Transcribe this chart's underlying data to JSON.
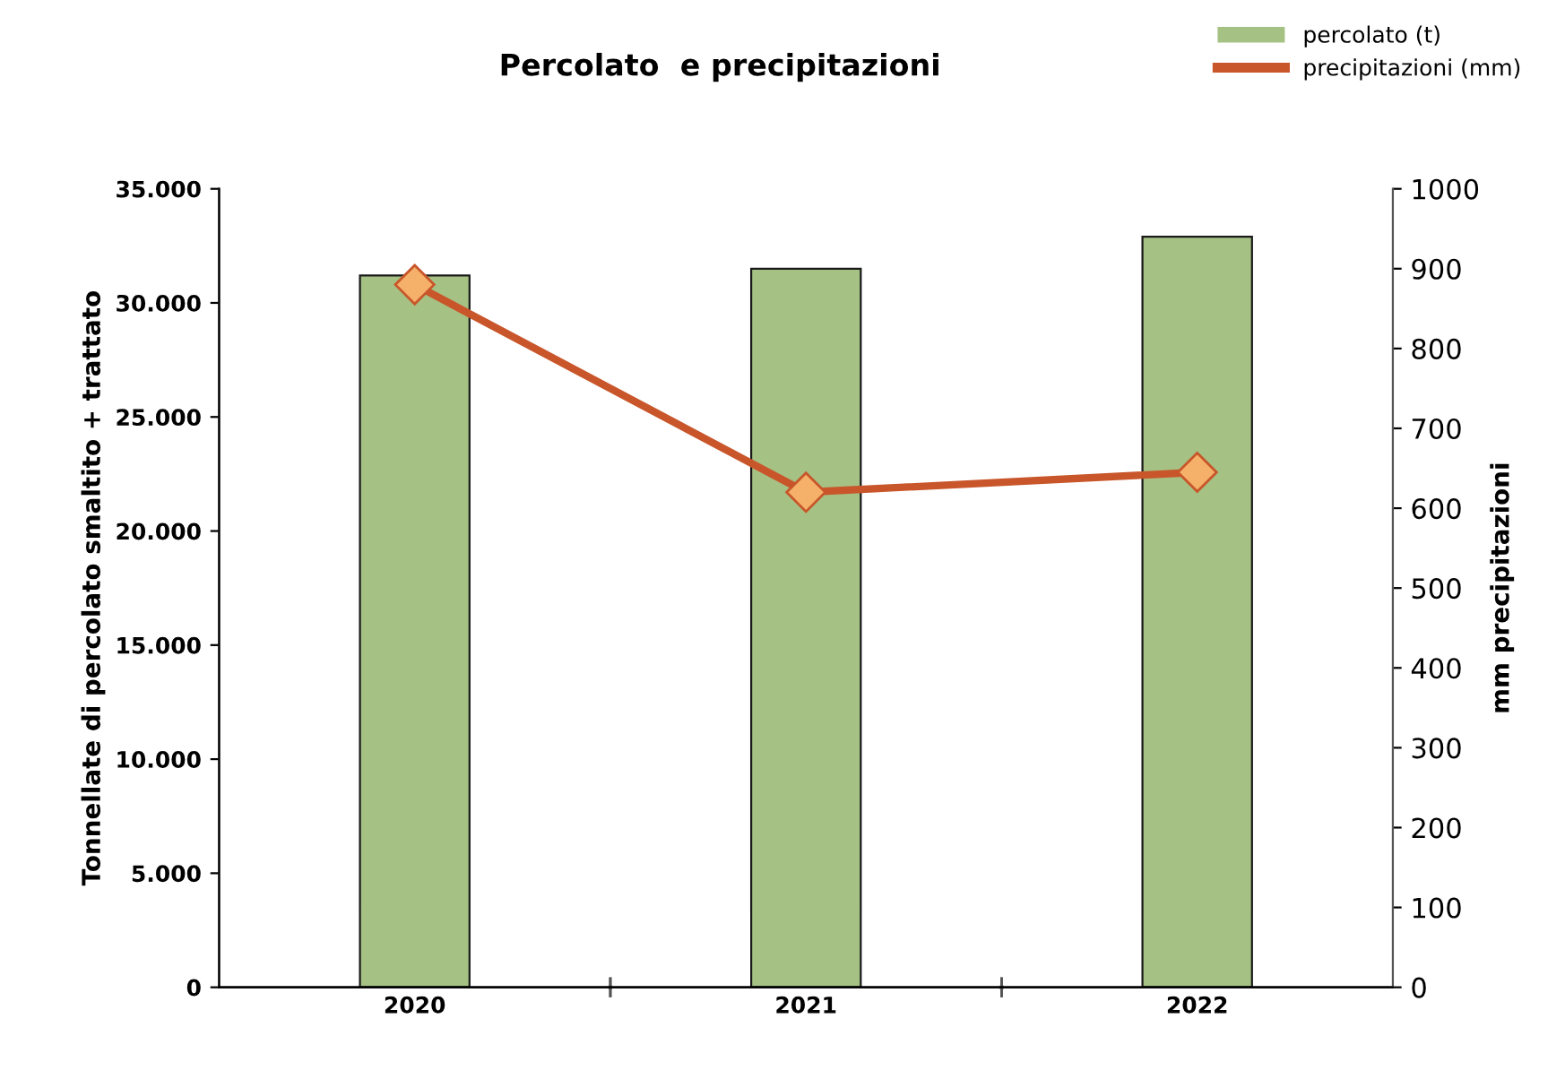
{
  "chart_data": {
    "type": "bar",
    "title": "Percolato  e precipitazioni",
    "ylabel": "Tonnellate di percolato smaltito + trattato",
    "y2label": "mm precipitazioni",
    "categories": [
      "2020",
      "2021",
      "2022"
    ],
    "series": [
      {
        "name": "percolato (t)",
        "color": "#a6c184",
        "values": [
          31200,
          31500,
          32900
        ]
      },
      {
        "name": "precipitazioni (mm)",
        "type": "line",
        "axis": "y2",
        "color": "#c8562a",
        "values": [
          880,
          620,
          645
        ]
      }
    ],
    "ylim": [
      0,
      35000
    ],
    "yticks": [
      0,
      {
        "value": 5000,
        "label": "5.000"
      },
      {
        "value": 10000,
        "label": "10.000"
      },
      {
        "value": 15000,
        "label": "15.000"
      },
      {
        "value": 20000,
        "label": "20.000"
      },
      {
        "value": 25000,
        "label": "25.000"
      },
      {
        "value": 30000,
        "label": "30.000"
      },
      {
        "value": 35000,
        "label": "35.000"
      }
    ],
    "y2lim": [
      0,
      1000
    ],
    "y2ticks": [
      0,
      100,
      200,
      300,
      400,
      500,
      600,
      700,
      800,
      900,
      1000
    ],
    "marker": "diamond",
    "grid": false,
    "legend": "top right"
  }
}
